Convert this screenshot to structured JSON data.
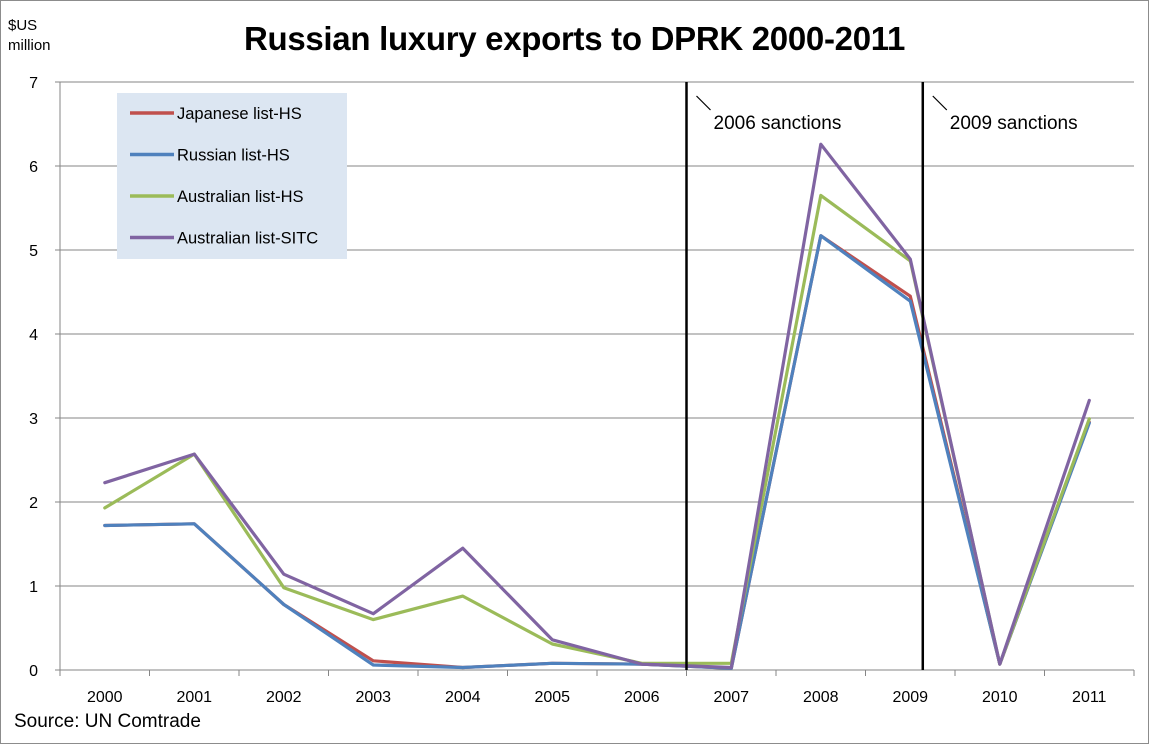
{
  "chart_data": {
    "type": "line",
    "title": "Russian luxury exports to DPRK 2000-2011",
    "ylabel": "$US million",
    "xlabel": "",
    "source": "Source: UN Comtrade",
    "categories": [
      "2000",
      "2001",
      "2002",
      "2003",
      "2004",
      "2005",
      "2006",
      "2007",
      "2008",
      "2009",
      "2010",
      "2011"
    ],
    "ylim": [
      0,
      7
    ],
    "yticks": [
      0,
      1,
      2,
      3,
      4,
      5,
      6,
      7
    ],
    "grid": true,
    "legend_position": "top-left",
    "series": [
      {
        "name": "Japanese list-HS",
        "color": "#c0504d",
        "values": [
          1.72,
          1.74,
          0.78,
          0.11,
          0.03,
          0.08,
          0.07,
          0.02,
          5.17,
          4.45,
          0.07,
          2.95
        ]
      },
      {
        "name": "Russian list-HS",
        "color": "#4f81bd",
        "values": [
          1.72,
          1.74,
          0.78,
          0.06,
          0.03,
          0.08,
          0.07,
          0.02,
          5.17,
          4.39,
          0.07,
          2.94
        ]
      },
      {
        "name": "Australian list-HS",
        "color": "#9bbb59",
        "values": [
          1.93,
          2.57,
          0.98,
          0.6,
          0.88,
          0.31,
          0.08,
          0.08,
          5.65,
          4.87,
          0.07,
          2.99
        ]
      },
      {
        "name": "Australian list-SITC",
        "color": "#8064a2",
        "values": [
          2.23,
          2.57,
          1.14,
          0.67,
          1.45,
          0.36,
          0.07,
          0.03,
          6.26,
          4.89,
          0.07,
          3.21
        ]
      }
    ],
    "annotations": [
      {
        "label": "2006 sanctions",
        "x": 6.5
      },
      {
        "label": "2009 sanctions",
        "x": 9.14
      }
    ]
  }
}
